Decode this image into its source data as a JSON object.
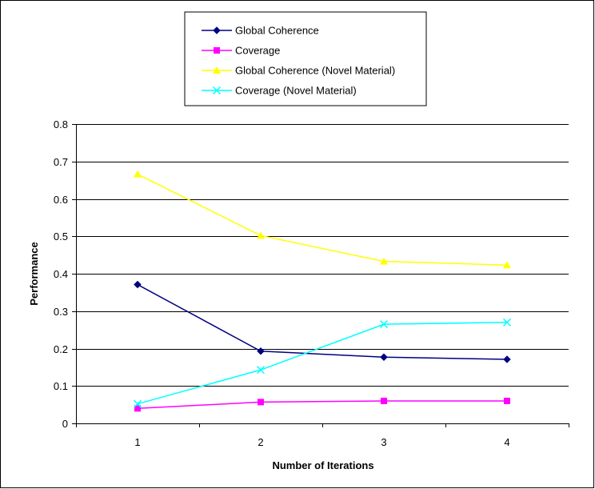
{
  "chart_data": {
    "type": "line",
    "title": "",
    "xlabel": "Number of Iterations",
    "ylabel": "Performance",
    "x": [
      1,
      2,
      3,
      4
    ],
    "x_tick_labels": [
      "1",
      "2",
      "3",
      "4"
    ],
    "ylim": [
      0,
      0.8
    ],
    "y_ticks": [
      0,
      0.1,
      0.2,
      0.3,
      0.4,
      0.5,
      0.6,
      0.7,
      0.8
    ],
    "y_tick_labels": [
      "0",
      "0.1",
      "0.2",
      "0.3",
      "0.4",
      "0.5",
      "0.6",
      "0.7",
      "0.8"
    ],
    "grid": "horizontal",
    "legend_position": "top-center",
    "series": [
      {
        "name": "Global Coherence",
        "values": [
          0.371,
          0.193,
          0.177,
          0.171
        ],
        "color": "#000080",
        "marker": "diamond"
      },
      {
        "name": "Coverage",
        "values": [
          0.04,
          0.057,
          0.06,
          0.06
        ],
        "color": "#FF00FF",
        "marker": "square"
      },
      {
        "name": "Global Coherence (Novel Material)",
        "values": [
          0.666,
          0.502,
          0.433,
          0.423
        ],
        "color": "#FFFF00",
        "marker": "triangle"
      },
      {
        "name": "Coverage (Novel Material)",
        "values": [
          0.052,
          0.143,
          0.265,
          0.27
        ],
        "color": "#00FFFF",
        "marker": "x"
      }
    ]
  }
}
